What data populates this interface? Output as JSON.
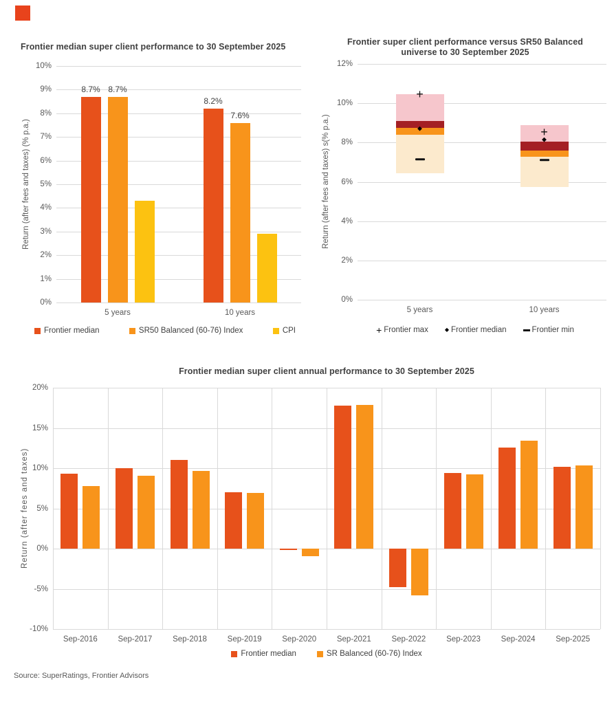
{
  "logo": {
    "name": "frontier-logo-square",
    "color": "#E8431C"
  },
  "source": "Source: SuperRatings, Frontier Advisors",
  "colors": {
    "frontier_red": "#E7511B",
    "sr_orange": "#F8941B",
    "cpi_yellow": "#FCC211",
    "band_pink": "#F6C6CC",
    "band_darkred": "#A41F24",
    "band_cream": "#FCEACD",
    "grid": "#D9D9D9",
    "title_text": "#404040",
    "tick_text": "#595959",
    "marker_black": "#111111"
  },
  "chart_data": [
    {
      "id": "chart1",
      "type": "bar",
      "title": "Frontier median super client performance to 30 September 2025",
      "ylabel": "Return (after fees and taxes) (% p.a.)",
      "y_axis": {
        "min": 0,
        "max": 10,
        "step": 1,
        "suffix": "%"
      },
      "grid": "horizontal",
      "legend_position": "bottom",
      "categories": [
        "5 years",
        "10 years"
      ],
      "series": [
        {
          "name": "Frontier median",
          "color_key": "frontier_red",
          "values": [
            8.7,
            8.2
          ],
          "labels": [
            "8.7%",
            "8.2%"
          ]
        },
        {
          "name": "SR50 Balanced (60-76) Index",
          "color_key": "sr_orange",
          "values": [
            8.7,
            7.6
          ],
          "labels": [
            "8.7%",
            "7.6%"
          ]
        },
        {
          "name": "CPI",
          "color_key": "cpi_yellow",
          "values": [
            4.3,
            2.9
          ],
          "labels": [
            null,
            null
          ]
        }
      ]
    },
    {
      "id": "chart2",
      "type": "range",
      "title": "Frontier super client performance versus SR50 Balanced universe to 30 September 2025",
      "title_lines": [
        "Frontier super client performance versus SR50 Balanced",
        "universe to 30 September 2025"
      ],
      "ylabel": "Return (after fees and taxes) s(% p.a.)",
      "y_axis": {
        "min": 0,
        "max": 12,
        "step": 2,
        "suffix": "%"
      },
      "grid": "horizontal",
      "legend_position": "bottom",
      "categories": [
        "5 years",
        "10 years"
      ],
      "bars": [
        {
          "category": "5 years",
          "segments": [
            {
              "from": 6.45,
              "to": 8.4,
              "color_key": "band_cream"
            },
            {
              "from": 8.4,
              "to": 8.75,
              "color_key": "sr_orange"
            },
            {
              "from": 8.75,
              "to": 9.08,
              "color_key": "band_darkred"
            },
            {
              "from": 9.08,
              "to": 10.47,
              "color_key": "band_pink"
            }
          ],
          "frontier_max": 10.45,
          "frontier_median": 8.72,
          "frontier_min": 7.15
        },
        {
          "category": "10 years",
          "segments": [
            {
              "from": 5.75,
              "to": 7.28,
              "color_key": "band_cream"
            },
            {
              "from": 7.28,
              "to": 7.6,
              "color_key": "sr_orange"
            },
            {
              "from": 7.6,
              "to": 8.05,
              "color_key": "band_darkred"
            },
            {
              "from": 8.05,
              "to": 8.87,
              "color_key": "band_pink"
            }
          ],
          "frontier_max": 8.55,
          "frontier_median": 8.16,
          "frontier_min": 7.1
        }
      ],
      "legend": [
        {
          "glyph": "plus",
          "label": "Frontier max"
        },
        {
          "glyph": "diamond",
          "label": "Frontier median"
        },
        {
          "glyph": "min",
          "label": "Frontier min"
        }
      ]
    },
    {
      "id": "chart3",
      "type": "bar",
      "title": "Frontier median super client annual performance to 30 September 2025",
      "ylabel": "Return (after fees and taxes)",
      "y_axis": {
        "min": -10,
        "max": 20,
        "step": 5,
        "suffix": "%"
      },
      "grid": "both",
      "legend_position": "bottom",
      "categories": [
        "Sep-2016",
        "Sep-2017",
        "Sep-2018",
        "Sep-2019",
        "Sep-2020",
        "Sep-2021",
        "Sep-2022",
        "Sep-2023",
        "Sep-2024",
        "Sep-2025"
      ],
      "series": [
        {
          "name": "Frontier median",
          "color_key": "frontier_red",
          "values": [
            9.3,
            10.0,
            11.0,
            7.0,
            -0.2,
            17.8,
            -4.8,
            9.4,
            12.6,
            10.2
          ]
        },
        {
          "name": "SR Balanced (60-76) Index",
          "color_key": "sr_orange",
          "values": [
            7.8,
            9.1,
            9.7,
            6.9,
            -0.9,
            17.9,
            -5.8,
            9.2,
            13.4,
            10.3
          ]
        }
      ]
    }
  ]
}
